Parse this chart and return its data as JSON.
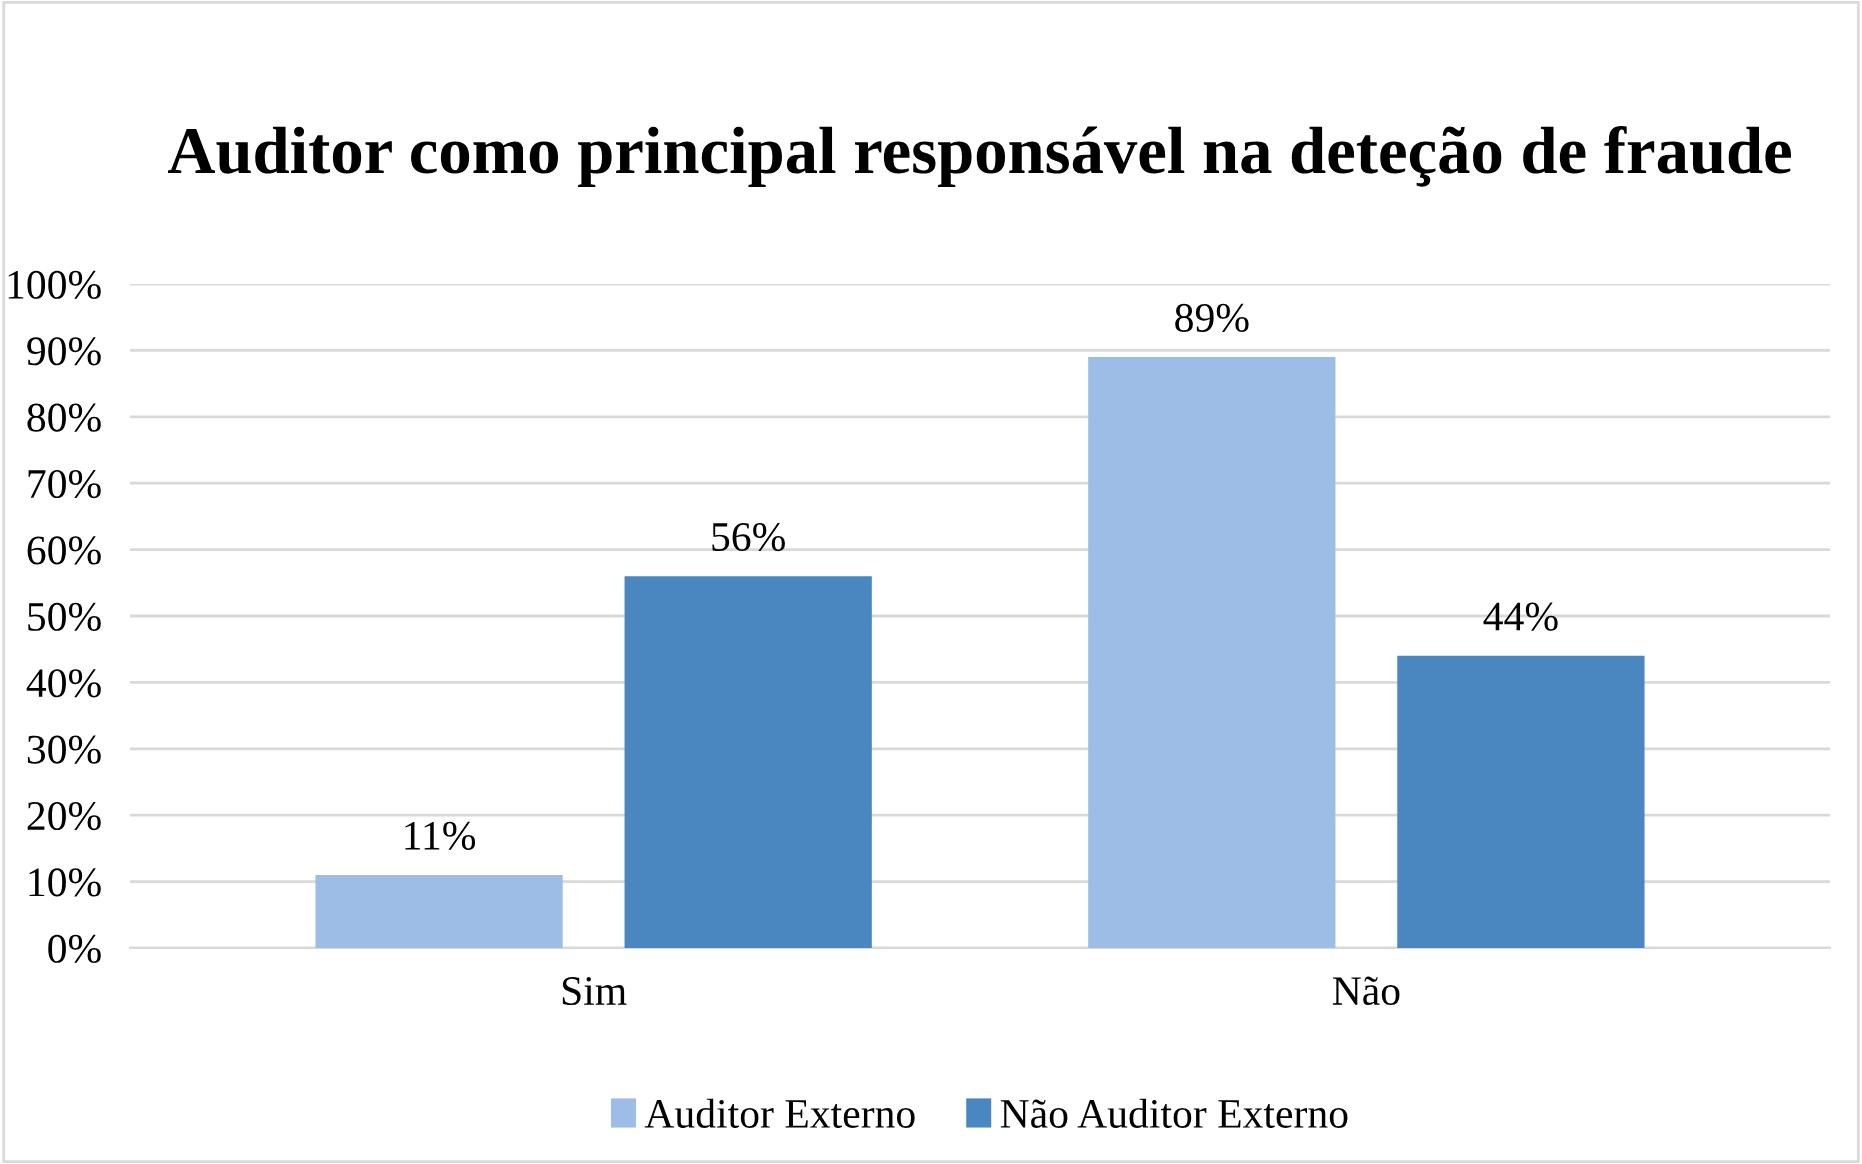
{
  "chart_data": {
    "type": "bar",
    "title": "Auditor como principal responsável na deteção de fraude",
    "categories": [
      "Sim",
      "Não"
    ],
    "series": [
      {
        "name": "Auditor Externo",
        "color": "#9dbde6",
        "values": [
          11,
          89
        ],
        "value_labels": [
          "11%",
          "89%"
        ]
      },
      {
        "name": "Não Auditor Externo",
        "color": "#4a86c0",
        "values": [
          56,
          44
        ],
        "value_labels": [
          "56%",
          "44%"
        ]
      }
    ],
    "ylim": [
      0,
      100
    ],
    "yticks": [
      {
        "value": 0,
        "label": "0%"
      },
      {
        "value": 10,
        "label": "10%"
      },
      {
        "value": 20,
        "label": "20%"
      },
      {
        "value": 30,
        "label": "30%"
      },
      {
        "value": 40,
        "label": "40%"
      },
      {
        "value": 50,
        "label": "50%"
      },
      {
        "value": 60,
        "label": "60%"
      },
      {
        "value": 70,
        "label": "70%"
      },
      {
        "value": 80,
        "label": "80%"
      },
      {
        "value": 90,
        "label": "90%"
      },
      {
        "value": 100,
        "label": "100%"
      }
    ],
    "grid": "y",
    "legend": "bottom"
  }
}
